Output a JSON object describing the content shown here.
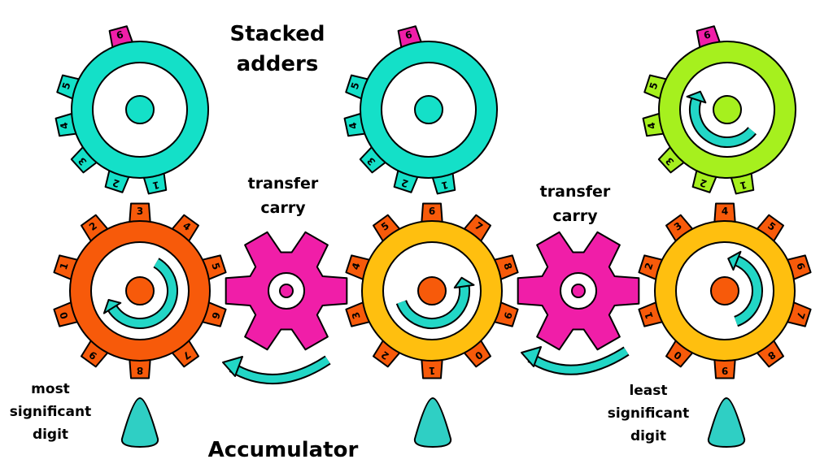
{
  "labels": {
    "stacked_adders_line1": "Stacked",
    "stacked_adders_line2": "adders",
    "accumulator": "Accumulator",
    "transfer_carry_left_line1": "transfer",
    "transfer_carry_left_line2": "carry",
    "transfer_carry_right_line1": "transfer",
    "transfer_carry_right_line2": "carry",
    "msd_line1": "most",
    "msd_line2": "significant",
    "msd_line3": "digit",
    "lsd_line1": "least",
    "lsd_line2": "significant",
    "lsd_line3": "digit"
  },
  "colors": {
    "adder": "#14e0c8",
    "adder_active": "#a6f01e",
    "carry_tooth": "#f01ea8",
    "accumulator_msd": "#f75a0a",
    "accumulator_other": "#ffbf0f",
    "accumulator_teeth": "#f75a0a",
    "transfer_gear": "#f01ea8",
    "arrow": "#22d6c6",
    "pointer": "#2fcfc4",
    "outline": "#000000"
  },
  "adders": [
    {
      "name": "adder-left",
      "digits": [
        "1",
        "2",
        "3",
        "4",
        "5",
        "6"
      ]
    },
    {
      "name": "adder-middle",
      "digits": [
        "1",
        "2",
        "3",
        "4",
        "5",
        "6"
      ]
    },
    {
      "name": "adder-right",
      "digits": [
        "1",
        "2",
        "3",
        "4",
        "5",
        "6"
      ]
    }
  ],
  "accumulators": [
    {
      "name": "accumulator-left",
      "digits": [
        "3",
        "4",
        "5",
        "6",
        "7",
        "8",
        "9",
        "0",
        "1",
        "2"
      ]
    },
    {
      "name": "accumulator-middle",
      "digits": [
        "6",
        "7",
        "8",
        "9",
        "0",
        "1",
        "2",
        "3",
        "4",
        "5"
      ]
    },
    {
      "name": "accumulator-right",
      "digits": [
        "4",
        "5",
        "6",
        "7",
        "8",
        "9",
        "0",
        "1",
        "2",
        "3"
      ]
    }
  ]
}
